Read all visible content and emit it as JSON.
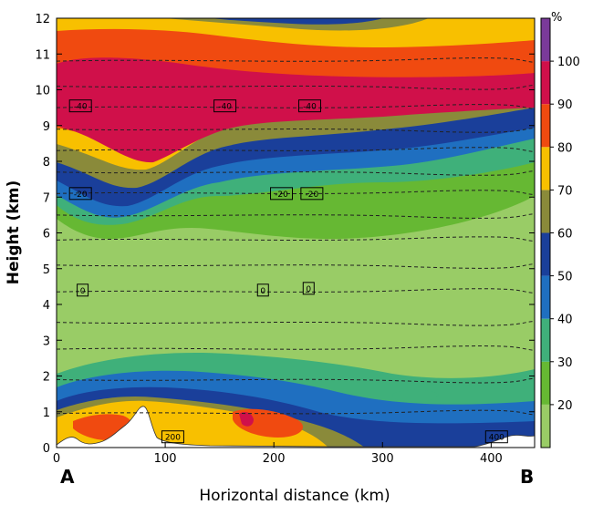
{
  "chart_data": {
    "type": "heatmap",
    "xlabel": "Horizontal distance (km)",
    "ylabel": "Height (km)",
    "xlim": [
      0,
      440
    ],
    "ylim": [
      0,
      12
    ],
    "x_ticks": [
      0,
      100,
      200,
      300,
      400
    ],
    "y_ticks": [
      0,
      1,
      2,
      3,
      4,
      5,
      6,
      7,
      8,
      9,
      10,
      11,
      12
    ],
    "endpoint_labels": {
      "start": "A",
      "end": "B"
    },
    "colorbar": {
      "unit": "%",
      "tick_labels": [
        20,
        30,
        40,
        50,
        60,
        70,
        80,
        90,
        100
      ],
      "levels": [
        10,
        20,
        30,
        40,
        50,
        60,
        70,
        80,
        90,
        100,
        110
      ],
      "colors": [
        "#99cc66",
        "#66b833",
        "#3fb07a",
        "#1f6fc0",
        "#1a3f9a",
        "#8a8a3a",
        "#f8c000",
        "#f04a10",
        "#d0104a",
        "#7a3a9a"
      ]
    },
    "contour_labels": [
      {
        "text": "-40",
        "x": 22,
        "y": 9.55
      },
      {
        "text": "-40",
        "x": 155,
        "y": 9.55
      },
      {
        "text": "-40",
        "x": 233,
        "y": 9.55
      },
      {
        "text": "-20",
        "x": 22,
        "y": 7.1
      },
      {
        "text": "-20",
        "x": 207,
        "y": 7.1
      },
      {
        "text": "-20",
        "x": 235,
        "y": 7.1
      },
      {
        "text": "0",
        "x": 24,
        "y": 4.4
      },
      {
        "text": "0",
        "x": 190,
        "y": 4.4
      },
      {
        "text": "0",
        "x": 232,
        "y": 4.45
      },
      {
        "text": "200",
        "x": 107,
        "y": 0.3
      },
      {
        "text": "400",
        "x": 405,
        "y": 0.3
      }
    ],
    "isotherm_heights_km": [
      0.95,
      1.9,
      2.75,
      3.5,
      4.35,
      5.1,
      5.8,
      6.5,
      7.1,
      7.7,
      8.3,
      8.9,
      9.5,
      10.1,
      10.8
    ]
  }
}
